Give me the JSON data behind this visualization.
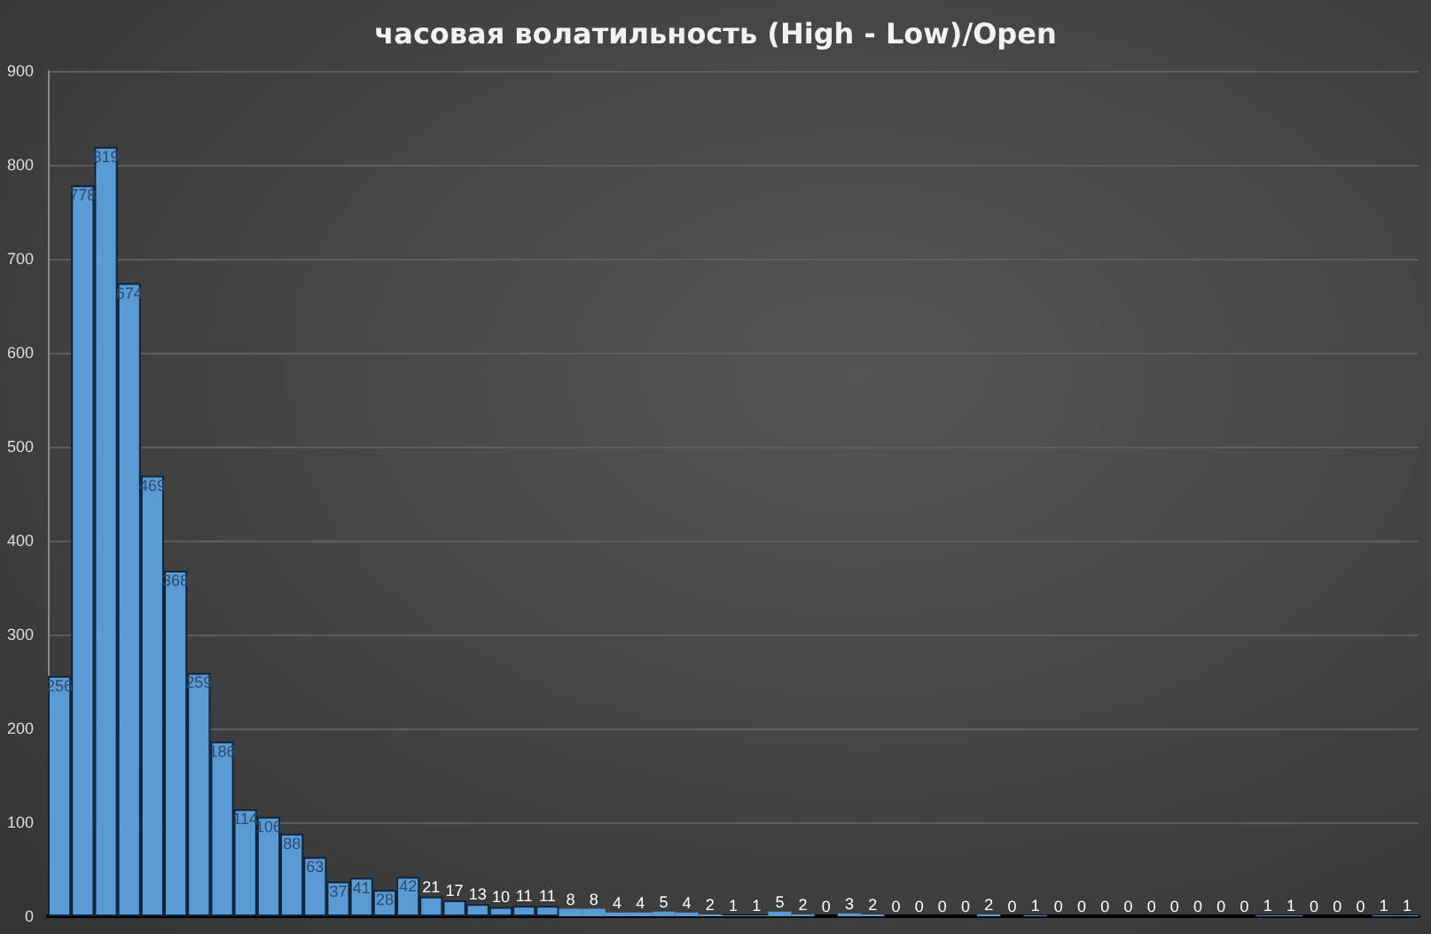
{
  "chart_data": {
    "type": "bar",
    "title": "часовая волатильность (High - Low)/Open",
    "categories": [
      null,
      null,
      null,
      null,
      null,
      null,
      null,
      null,
      null,
      null,
      null,
      null,
      null,
      null,
      null,
      null,
      null,
      null,
      null,
      null,
      null,
      null,
      null,
      null,
      null,
      null,
      null,
      null,
      null,
      null,
      null,
      null,
      null,
      null,
      null,
      null,
      null,
      null,
      null,
      null,
      null,
      null,
      null,
      null,
      null,
      null,
      null,
      null,
      null,
      null,
      null,
      null,
      null,
      null,
      null,
      null,
      null,
      null,
      null
    ],
    "values": [
      256,
      778,
      819,
      674,
      469,
      368,
      259,
      186,
      114,
      106,
      88,
      63,
      37,
      41,
      28,
      42,
      21,
      17,
      13,
      10,
      11,
      11,
      8,
      8,
      4,
      4,
      5,
      4,
      2,
      1,
      1,
      5,
      2,
      0,
      3,
      2,
      0,
      0,
      0,
      0,
      2,
      0,
      1,
      0,
      0,
      0,
      0,
      0,
      0,
      0,
      0,
      0,
      1,
      1,
      0,
      0,
      0,
      1,
      1
    ],
    "color": "#5b9bd5",
    "ylim": [
      0,
      900
    ],
    "yticks": [
      0,
      100,
      200,
      300,
      400,
      500,
      600,
      700,
      800,
      900
    ],
    "grid": "y",
    "data_labels": true,
    "tick_labels": "y"
  }
}
